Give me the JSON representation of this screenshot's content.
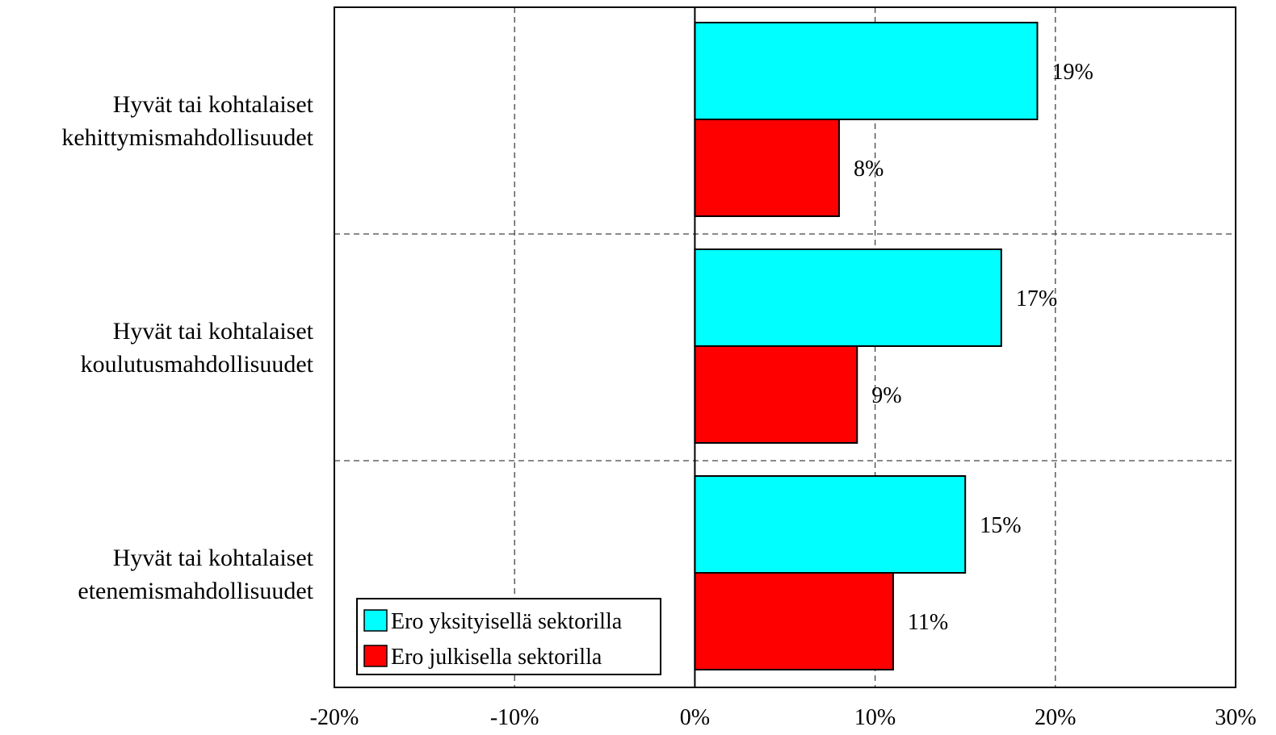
{
  "chart_data": {
    "type": "bar",
    "orientation": "horizontal",
    "categories": [
      [
        "Hyvät tai kohtalaiset",
        "kehittymismahdollisuudet"
      ],
      [
        "Hyvät tai kohtalaiset",
        "koulutusmahdollisuudet"
      ],
      [
        "Hyvät tai kohtalaiset",
        "etenemismahdollisuudet"
      ]
    ],
    "series": [
      {
        "name": "Ero yksityisellä sektorilla",
        "color": "#00ffff",
        "values": [
          19,
          17,
          15
        ],
        "labels": [
          "19%",
          "17%",
          "15%"
        ]
      },
      {
        "name": "Ero julkisella sektorilla",
        "color": "#ff0000",
        "values": [
          8,
          9,
          11
        ],
        "labels": [
          "8%",
          "9%",
          "11%"
        ]
      }
    ],
    "xlim": [
      -20,
      30
    ],
    "xticks": [
      -20,
      -10,
      0,
      10,
      20,
      30
    ],
    "xtick_labels": [
      "-20%",
      "-10%",
      "0%",
      "10%",
      "20%",
      "30%"
    ],
    "grid": true,
    "legend_position": "bottom-left"
  }
}
